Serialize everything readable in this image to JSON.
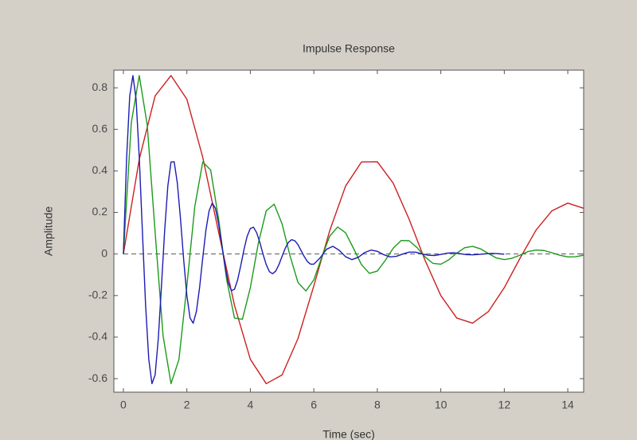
{
  "chart_data": {
    "type": "line",
    "title": "Impulse Response",
    "xlabel": "Time (sec)",
    "ylabel": "Amplitude",
    "xlim": [
      -0.3,
      14.5
    ],
    "ylim": [
      -0.665,
      0.885
    ],
    "xticks": [
      0,
      2,
      4,
      6,
      8,
      10,
      12,
      14
    ],
    "yticks": [
      -0.6,
      -0.4,
      -0.2,
      0,
      0.2,
      0.4,
      0.6,
      0.8
    ],
    "grid": false,
    "series": [
      {
        "color": "#cc2020",
        "x": [
          0,
          0.5,
          1,
          1.5,
          2,
          2.5,
          3,
          3.5,
          4,
          4.5,
          5,
          5.5,
          6,
          6.5,
          7,
          7.5,
          8,
          8.5,
          9,
          9.5,
          10,
          10.5,
          11,
          11.5,
          12,
          12.5,
          13,
          13.5,
          14,
          14.5
        ],
        "values": [
          0,
          0.456,
          0.761,
          0.859,
          0.745,
          0.466,
          0.105,
          -0.247,
          -0.507,
          -0.624,
          -0.582,
          -0.407,
          -0.153,
          0.112,
          0.327,
          0.443,
          0.444,
          0.341,
          0.168,
          -0.029,
          -0.2,
          -0.308,
          -0.333,
          -0.277,
          -0.162,
          -0.019,
          0.115,
          0.208,
          0.245,
          0.22
        ]
      },
      {
        "color": "#1c9a1c",
        "x": [
          0,
          0.25,
          0.5,
          0.75,
          1,
          1.25,
          1.5,
          1.75,
          2,
          2.25,
          2.5,
          2.75,
          3,
          3.25,
          3.5,
          3.75,
          4,
          4.25,
          4.5,
          4.75,
          5,
          5.25,
          5.5,
          5.75,
          6,
          6.25,
          6.5,
          6.75,
          7,
          7.25,
          7.5,
          7.75,
          8,
          8.25,
          8.5,
          8.75,
          9,
          9.25,
          9.5,
          9.75,
          10,
          10.25,
          10.5,
          10.75,
          11,
          11.25,
          11.5,
          11.75,
          12,
          12.25,
          12.5,
          12.75,
          13,
          13.25,
          13.5,
          13.75,
          14,
          14.25,
          14.5
        ],
        "values": [
          0,
          0.633,
          0.859,
          0.622,
          0.105,
          -0.393,
          -0.624,
          -0.508,
          -0.153,
          0.229,
          0.443,
          0.404,
          0.168,
          -0.121,
          -0.308,
          -0.314,
          -0.162,
          0.051,
          0.208,
          0.24,
          0.145,
          -0.009,
          -0.137,
          -0.178,
          -0.124,
          -0.015,
          0.086,
          0.13,
          0.102,
          0.027,
          -0.051,
          -0.093,
          -0.082,
          -0.031,
          0.028,
          0.065,
          0.064,
          0.031,
          -0.013,
          -0.045,
          -0.049,
          -0.028,
          0.004,
          0.03,
          0.037,
          0.025,
          0.002,
          -0.019,
          -0.027,
          -0.02,
          -0.005,
          0.012,
          0.019,
          0.017,
          0.006,
          -0.006,
          -0.014,
          -0.013,
          -0.006
        ]
      },
      {
        "color": "#1c1cb4",
        "x": [
          0,
          0.1,
          0.2,
          0.3,
          0.4,
          0.5,
          0.6,
          0.7,
          0.8,
          0.9,
          1,
          1.1,
          1.2,
          1.3,
          1.4,
          1.5,
          1.6,
          1.7,
          1.8,
          1.9,
          2,
          2.1,
          2.2,
          2.3,
          2.4,
          2.5,
          2.6,
          2.7,
          2.8,
          2.9,
          3,
          3.1,
          3.2,
          3.3,
          3.4,
          3.5,
          3.6,
          3.7,
          3.8,
          3.9,
          4,
          4.1,
          4.2,
          4.3,
          4.4,
          4.5,
          4.6,
          4.7,
          4.8,
          4.9,
          5,
          5.1,
          5.2,
          5.3,
          5.4,
          5.5,
          5.6,
          5.7,
          5.8,
          5.9,
          6,
          6.2,
          6.4,
          6.6,
          6.8,
          7,
          7.2,
          7.4,
          7.6,
          7.8,
          8,
          8.2,
          8.4,
          8.6,
          8.8,
          9,
          9.2,
          9.4,
          9.6,
          9.8,
          10,
          10.2,
          10.4,
          10.6,
          10.8,
          11,
          11.2,
          11.4,
          11.6,
          11.8,
          12
        ],
        "values": [
          0,
          0.456,
          0.761,
          0.859,
          0.745,
          0.466,
          0.105,
          -0.247,
          -0.507,
          -0.624,
          -0.582,
          -0.407,
          -0.153,
          0.112,
          0.327,
          0.443,
          0.444,
          0.341,
          0.168,
          -0.029,
          -0.2,
          -0.308,
          -0.333,
          -0.277,
          -0.162,
          -0.019,
          0.115,
          0.208,
          0.245,
          0.22,
          0.145,
          0.044,
          -0.058,
          -0.137,
          -0.176,
          -0.17,
          -0.124,
          -0.054,
          0.022,
          0.086,
          0.123,
          0.129,
          0.102,
          0.055,
          -0.001,
          -0.051,
          -0.085,
          -0.095,
          -0.082,
          -0.051,
          -0.011,
          0.028,
          0.056,
          0.069,
          0.064,
          0.045,
          0.016,
          -0.013,
          -0.037,
          -0.049,
          -0.049,
          -0.018,
          0.023,
          0.037,
          0.018,
          -0.013,
          -0.027,
          -0.016,
          0.007,
          0.019,
          0.013,
          -0.003,
          -0.014,
          -0.011,
          0,
          0.009,
          0.009,
          0.001,
          -0.006,
          -0.007,
          -0.002,
          0.004,
          0.006,
          0.002,
          -0.003,
          -0.004,
          -0.002,
          0.001,
          0.003,
          0.002,
          -0.001
        ]
      }
    ]
  }
}
